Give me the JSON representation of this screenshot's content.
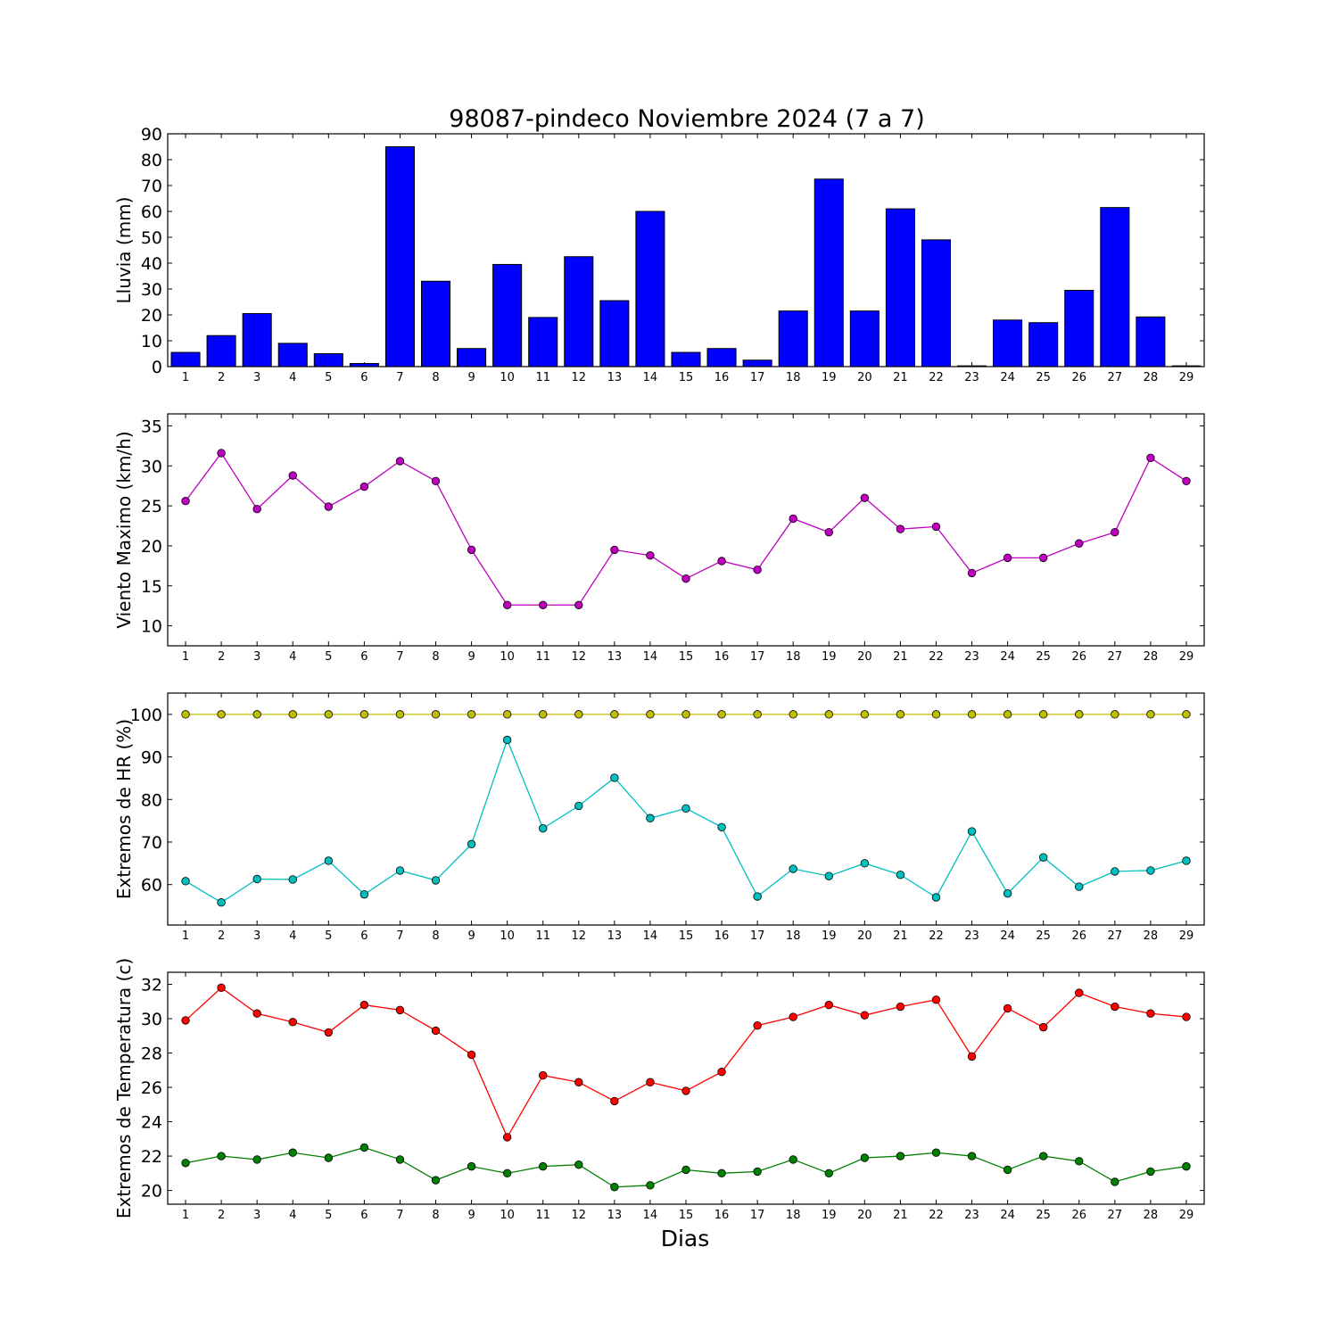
{
  "title": "98087-pindeco Noviembre 2024  (7 a 7)",
  "xlabel": "Dias",
  "chart_data": [
    {
      "type": "bar",
      "ylabel": "Lluvia (mm)",
      "categories": [
        1,
        2,
        3,
        4,
        5,
        6,
        7,
        8,
        9,
        10,
        11,
        12,
        13,
        14,
        15,
        16,
        17,
        18,
        19,
        20,
        21,
        22,
        23,
        24,
        25,
        26,
        27,
        28,
        29
      ],
      "ylim": [
        0,
        90
      ],
      "yticks": [
        0,
        10,
        20,
        30,
        40,
        50,
        60,
        70,
        80,
        90
      ],
      "series": [
        {
          "color": "#0000ff",
          "values": [
            5.5,
            12,
            20.5,
            9,
            5,
            1.2,
            85,
            33,
            7,
            39.5,
            19,
            42.5,
            25.5,
            60,
            5.5,
            7,
            2.5,
            21.5,
            72.5,
            21.5,
            61,
            49,
            0.3,
            18,
            17,
            29.5,
            61.5,
            19.2,
            0.3
          ]
        }
      ]
    },
    {
      "type": "line",
      "ylabel": "Viento Maximo (km/h)",
      "categories": [
        1,
        2,
        3,
        4,
        5,
        6,
        7,
        8,
        9,
        10,
        11,
        12,
        13,
        14,
        15,
        16,
        17,
        18,
        19,
        20,
        21,
        22,
        23,
        24,
        25,
        26,
        27,
        28,
        29
      ],
      "ylim": [
        7.5,
        36.5
      ],
      "yticks": [
        10,
        15,
        20,
        25,
        30,
        35
      ],
      "series": [
        {
          "color": "#bf00bf",
          "values": [
            25.6,
            31.6,
            24.6,
            28.8,
            24.9,
            27.4,
            30.6,
            28.1,
            19.5,
            12.6,
            12.6,
            12.6,
            19.5,
            18.8,
            15.9,
            18.1,
            17.0,
            23.4,
            21.7,
            26.0,
            22.1,
            22.4,
            16.6,
            18.5,
            18.5,
            20.3,
            21.7,
            31.0,
            28.1
          ]
        }
      ]
    },
    {
      "type": "line",
      "ylabel": "Extremos de HR (%)",
      "categories": [
        1,
        2,
        3,
        4,
        5,
        6,
        7,
        8,
        9,
        10,
        11,
        12,
        13,
        14,
        15,
        16,
        17,
        18,
        19,
        20,
        21,
        22,
        23,
        24,
        25,
        26,
        27,
        28,
        29
      ],
      "ylim": [
        50.5,
        105
      ],
      "yticks": [
        60,
        70,
        80,
        90,
        100
      ],
      "series": [
        {
          "color": "#bfbf00",
          "values": [
            100,
            100,
            100,
            100,
            100,
            100,
            100,
            100,
            100,
            100,
            100,
            100,
            100,
            100,
            100,
            100,
            100,
            100,
            100,
            100,
            100,
            100,
            100,
            100,
            100,
            100,
            100,
            100,
            100
          ]
        },
        {
          "color": "#00bfbf",
          "values": [
            60.8,
            55.8,
            61.3,
            61.2,
            65.6,
            57.7,
            63.3,
            61.0,
            69.5,
            94.0,
            73.2,
            78.5,
            85.1,
            75.6,
            77.9,
            73.5,
            57.2,
            63.7,
            62.0,
            65.0,
            62.3,
            57.0,
            72.5,
            57.9,
            66.4,
            59.5,
            63.1,
            63.3,
            65.6
          ]
        }
      ]
    },
    {
      "type": "line",
      "ylabel": "Extremos de Temperatura (c)",
      "categories": [
        1,
        2,
        3,
        4,
        5,
        6,
        7,
        8,
        9,
        10,
        11,
        12,
        13,
        14,
        15,
        16,
        17,
        18,
        19,
        20,
        21,
        22,
        23,
        24,
        25,
        26,
        27,
        28,
        29
      ],
      "ylim": [
        19.2,
        32.7
      ],
      "yticks": [
        20,
        22,
        24,
        26,
        28,
        30,
        32
      ],
      "series": [
        {
          "color": "#ff0000",
          "values": [
            29.9,
            31.8,
            30.3,
            29.8,
            29.2,
            30.8,
            30.5,
            29.3,
            27.9,
            23.1,
            26.7,
            26.3,
            25.2,
            26.3,
            25.8,
            26.9,
            29.6,
            30.1,
            30.8,
            30.2,
            30.7,
            31.1,
            27.8,
            30.6,
            29.5,
            31.5,
            30.7,
            30.3,
            30.1
          ]
        },
        {
          "color": "#008000",
          "values": [
            21.6,
            22.0,
            21.8,
            22.2,
            21.9,
            22.5,
            21.8,
            20.6,
            21.4,
            21.0,
            21.4,
            21.5,
            20.2,
            20.3,
            21.2,
            21.0,
            21.1,
            21.8,
            21.0,
            21.9,
            22.0,
            22.2,
            22.0,
            21.2,
            22.0,
            21.7,
            20.5,
            21.1,
            21.4
          ]
        }
      ]
    }
  ]
}
